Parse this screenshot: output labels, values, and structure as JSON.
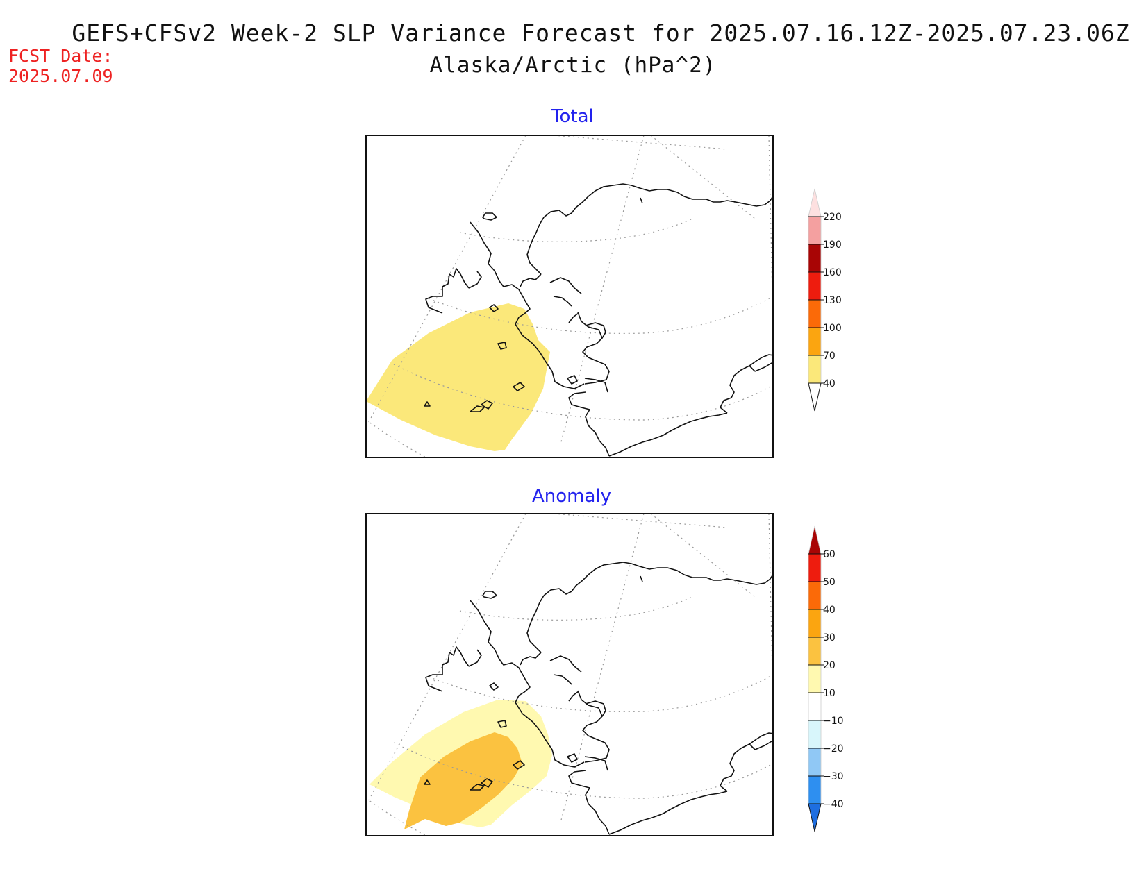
{
  "header": {
    "title": "GEFS+CFSv2 Week-2 SLP Variance Forecast for 2025.07.16.12Z-2025.07.23.06Z",
    "subtitle": "Alaska/Arctic (hPa^2)",
    "fcst_label": "FCST Date:",
    "fcst_date": "2025.07.09"
  },
  "panels": [
    {
      "title": "Total",
      "legend": {
        "levels": [
          "40",
          "70",
          "100",
          "130",
          "160",
          "190",
          "220"
        ],
        "colors": [
          "#ffffff",
          "#fbe87a",
          "#fba510",
          "#fb6a08",
          "#ee1c0e",
          "#a80505",
          "#f4a0a0",
          "#fde0e0"
        ]
      }
    },
    {
      "title": "Anomaly",
      "legend": {
        "levels": [
          "-40",
          "-30",
          "-20",
          "-10",
          "10",
          "20",
          "30",
          "40",
          "50",
          "60"
        ],
        "colors": [
          "#1e6ee0",
          "#2e8ff0",
          "#90c8f5",
          "#d8f6fb",
          "#ffffff",
          "#fff9b0",
          "#fbc240",
          "#fba510",
          "#fb6a08",
          "#ee1c0e",
          "#a80505"
        ]
      }
    }
  ]
}
